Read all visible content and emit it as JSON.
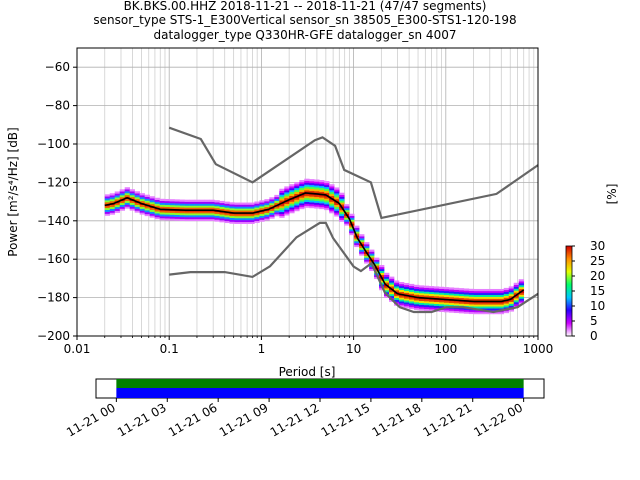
{
  "title_lines": [
    "BK.BKS.00.HHZ   2018-11-21 -- 2018-11-21  (47/47 segments)",
    "sensor_type STS-1_E300Vertical sensor_sn 38505_E300-STS1-120-198",
    "datalogger_type Q330HR-GFE datalogger_sn 4007"
  ],
  "chart_data": {
    "type": "heatmap",
    "xlabel": "Period [s]",
    "ylabel": "Power [m²/s⁴/Hz] [dB]",
    "x_scale": "log",
    "xlim": [
      0.01,
      1000
    ],
    "ylim": [
      -200,
      -50
    ],
    "x_ticks": [
      0.01,
      0.1,
      1,
      10,
      100,
      1000
    ],
    "x_tick_labels": [
      "0.01",
      "0.1",
      "1",
      "10",
      "100",
      "1000"
    ],
    "y_ticks": [
      -60,
      -80,
      -100,
      -120,
      -140,
      -160,
      -180,
      -200
    ],
    "grid": true,
    "colorbar": {
      "label": "[%]",
      "range": [
        0,
        30
      ],
      "ticks": [
        0,
        5,
        10,
        15,
        20,
        25,
        30
      ],
      "colors": [
        "#ffffff",
        "#cc00ff",
        "#2a00ff",
        "#00c8ff",
        "#00ff6a",
        "#e6ff00",
        "#ff8c00",
        "#d20000"
      ]
    },
    "series": [
      {
        "name": "NHNM",
        "color": "#666666",
        "points": [
          [
            0.1,
            -91.5
          ],
          [
            0.22,
            -97.4
          ],
          [
            0.32,
            -110.5
          ],
          [
            0.8,
            -120
          ],
          [
            3.8,
            -98
          ],
          [
            4.6,
            -96.5
          ],
          [
            6.3,
            -101
          ],
          [
            7.9,
            -113.5
          ],
          [
            15.4,
            -120
          ],
          [
            20,
            -138.5
          ],
          [
            354.8,
            -126
          ],
          [
            1000,
            -111
          ]
        ]
      },
      {
        "name": "NLNM",
        "color": "#666666",
        "points": [
          [
            0.1,
            -168
          ],
          [
            0.17,
            -166.7
          ],
          [
            0.4,
            -166.7
          ],
          [
            0.8,
            -169.2
          ],
          [
            1.24,
            -163.7
          ],
          [
            2.4,
            -148.6
          ],
          [
            4.3,
            -141.1
          ],
          [
            5,
            -141.1
          ],
          [
            6,
            -149
          ],
          [
            10,
            -163.8
          ],
          [
            12,
            -166.2
          ],
          [
            15.6,
            -162.1
          ],
          [
            21.9,
            -177.5
          ],
          [
            31.6,
            -185
          ],
          [
            45,
            -187.5
          ],
          [
            70,
            -187.5
          ],
          [
            101,
            -185
          ],
          [
            154,
            -185
          ],
          [
            328,
            -187.5
          ],
          [
            600,
            -185
          ],
          [
            1000,
            -178
          ]
        ]
      },
      {
        "name": "mode",
        "color": "#000000",
        "points": [
          [
            0.02,
            -132
          ],
          [
            0.025,
            -131
          ],
          [
            0.035,
            -128
          ],
          [
            0.05,
            -131
          ],
          [
            0.08,
            -134
          ],
          [
            0.15,
            -134.5
          ],
          [
            0.3,
            -134.5
          ],
          [
            0.5,
            -136
          ],
          [
            0.8,
            -136
          ],
          [
            1.2,
            -134
          ],
          [
            2,
            -129
          ],
          [
            3,
            -125.5
          ],
          [
            4,
            -126
          ],
          [
            5,
            -126.5
          ],
          [
            7,
            -131
          ],
          [
            9,
            -139
          ],
          [
            11,
            -149
          ],
          [
            14,
            -157
          ],
          [
            17,
            -163
          ],
          [
            22,
            -173
          ],
          [
            30,
            -178
          ],
          [
            50,
            -180
          ],
          [
            100,
            -181
          ],
          [
            200,
            -182
          ],
          [
            400,
            -182
          ],
          [
            500,
            -181
          ],
          [
            700,
            -176
          ]
        ]
      }
    ]
  },
  "timeline": {
    "tick_labels": [
      "11-21 00",
      "11-21 03",
      "11-21 06",
      "11-21 09",
      "11-21 12",
      "11-21 15",
      "11-21 18",
      "11-21 21",
      "11-22 00"
    ],
    "tick_hours": [
      0,
      3,
      6,
      9,
      12,
      15,
      18,
      21,
      24
    ],
    "range_hours": [
      -1.2,
      25.2
    ],
    "coverage_hours": [
      0,
      24
    ],
    "bar_colors": [
      "#008000",
      "#0000ff"
    ]
  }
}
